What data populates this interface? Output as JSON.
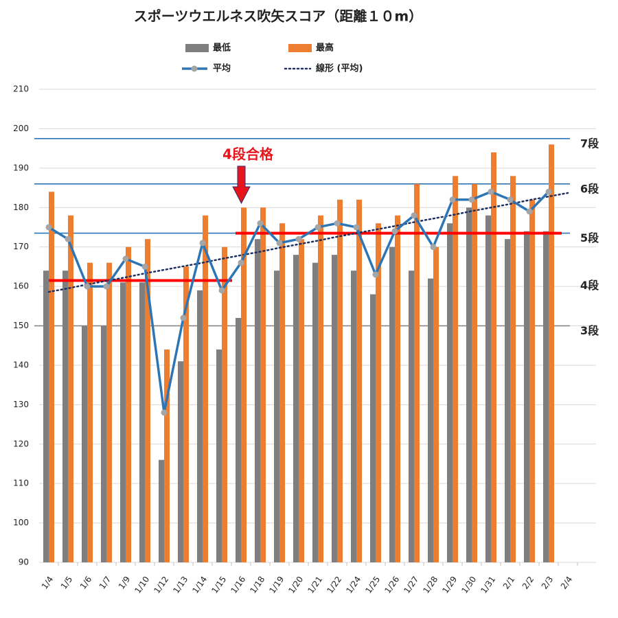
{
  "chart_data": {
    "type": "bar",
    "title": "スポーツウエルネス吹矢スコア（距離１０m）",
    "categories": [
      "1/4",
      "1/5",
      "1/6",
      "1/7",
      "1/9",
      "1/10",
      "1/12",
      "1/13",
      "1/14",
      "1/15",
      "1/16",
      "1/18",
      "1/19",
      "1/20",
      "1/21",
      "1/22",
      "1/24",
      "1/25",
      "1/26",
      "1/27",
      "1/28",
      "1/29",
      "1/30",
      "1/31",
      "2/1",
      "2/2",
      "2/3",
      "2/4"
    ],
    "series": [
      {
        "name": "最低",
        "kind": "bar",
        "color": "#7f7f7f",
        "values": [
          164,
          164,
          150,
          150,
          161,
          161,
          116,
          141,
          159,
          144,
          152,
          172,
          164,
          168,
          166,
          168,
          164,
          158,
          170,
          164,
          162,
          176,
          180,
          178,
          172,
          174,
          174,
          null
        ]
      },
      {
        "name": "最高",
        "kind": "bar",
        "color": "#ed7d31",
        "values": [
          184,
          178,
          166,
          166,
          170,
          172,
          144,
          165,
          178,
          170,
          180,
          180,
          176,
          172,
          178,
          182,
          182,
          176,
          178,
          186,
          170,
          188,
          186,
          194,
          188,
          182,
          196,
          null
        ]
      },
      {
        "name": "平均",
        "kind": "line",
        "color": "#2e75b6",
        "marker_color": "#a5a5a5",
        "values": [
          175,
          172,
          160,
          160,
          167,
          165,
          128,
          152,
          171,
          159,
          166,
          176,
          171,
          172,
          175,
          176,
          175,
          163,
          174,
          178,
          170,
          182,
          182,
          184,
          182,
          179,
          184,
          null
        ]
      },
      {
        "name": "線形 (平均)",
        "kind": "trend",
        "color": "#1f2f5f",
        "values": [
          158.6,
          159.5,
          160.5,
          161.4,
          162.3,
          163.3,
          164.2,
          165.1,
          166.0,
          167.0,
          167.9,
          168.8,
          169.8,
          170.7,
          171.6,
          172.6,
          173.5,
          174.4,
          175.3,
          176.3,
          177.2,
          178.1,
          179.1,
          180.0,
          180.9,
          181.9,
          182.8,
          183.7
        ]
      }
    ],
    "ylim": [
      90,
      210
    ],
    "yticks": [
      90,
      100,
      110,
      120,
      130,
      140,
      150,
      160,
      170,
      180,
      190,
      200,
      210
    ],
    "grid": true,
    "levels": [
      {
        "label": "7段",
        "value": 197.5,
        "line_color": "#2e75b6",
        "label_color": "#222222"
      },
      {
        "label": "6段",
        "value": 186,
        "line_color": "#2e75b6",
        "label_color": "#222222"
      },
      {
        "label": "5段",
        "value": 173.5,
        "line_color": "#2e75b6",
        "label_color": "#2e75b6"
      },
      {
        "label": "4段",
        "value": 161.5,
        "line_color": null,
        "label_color": "#222222"
      },
      {
        "label": "3段",
        "value": 150,
        "line_color": "#7f7f7f",
        "label_color": "#222222"
      }
    ],
    "goal_segments": [
      {
        "value": 161.5,
        "from": "1/4",
        "to": "1/16",
        "color": "#ff0000"
      },
      {
        "value": 173.5,
        "from": "1/16",
        "to": "2/3",
        "color": "#ff0000"
      }
    ],
    "annotation": {
      "text": "4段合格",
      "category": "1/16",
      "color": "#e8141b"
    }
  }
}
